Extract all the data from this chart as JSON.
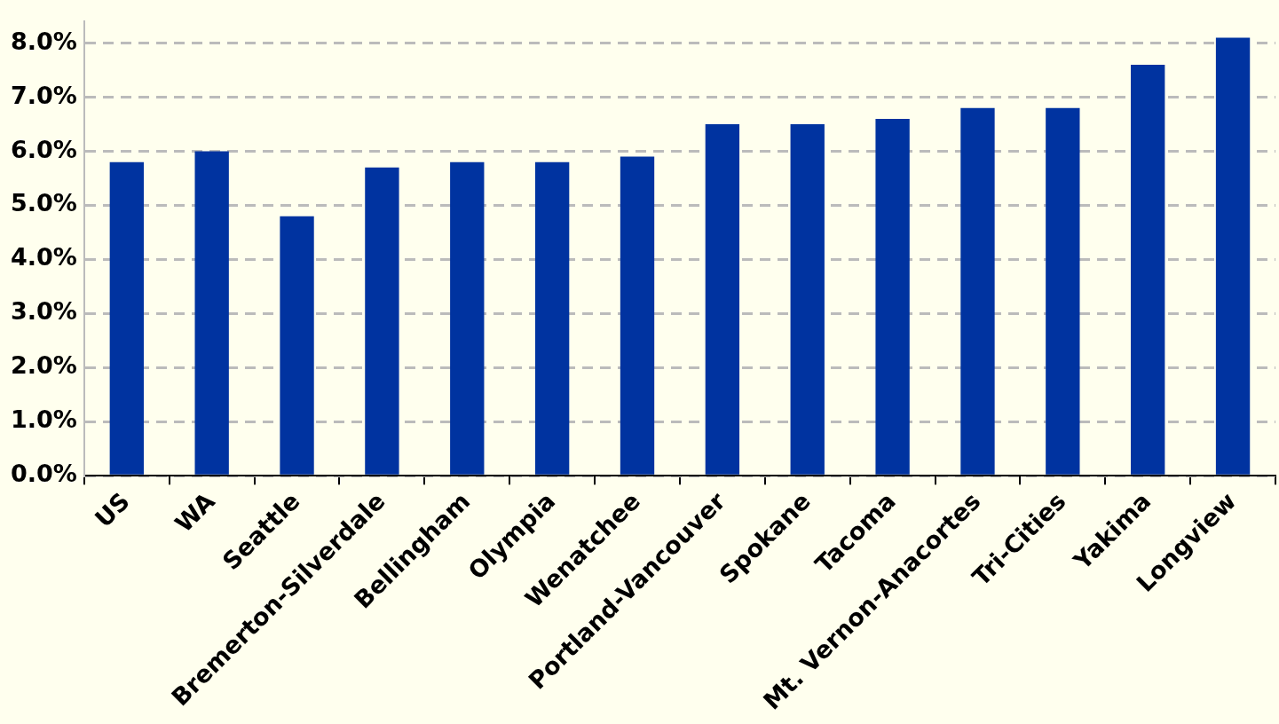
{
  "chart_data": {
    "type": "bar",
    "categories": [
      "US",
      "WA",
      "Seattle",
      "Bremerton-Silverdale",
      "Bellingham",
      "Olympia",
      "Wenatchee",
      "Portland-Vancouver",
      "Spokane",
      "Tacoma",
      "Mt. Vernon-Anacortes",
      "Tri-Cities",
      "Yakima",
      "Longview"
    ],
    "values": [
      5.8,
      6.0,
      4.8,
      5.7,
      5.8,
      5.8,
      5.9,
      6.5,
      6.5,
      6.6,
      6.8,
      6.8,
      7.6,
      8.1
    ],
    "color": "#0033a0",
    "ylim": [
      0,
      8.4
    ],
    "yticks": [
      {
        "value": 0,
        "label": "0.0%"
      },
      {
        "value": 1,
        "label": "1.0%"
      },
      {
        "value": 2,
        "label": "2.0%"
      },
      {
        "value": 3,
        "label": "3.0%"
      },
      {
        "value": 4,
        "label": "4.0%"
      },
      {
        "value": 5,
        "label": "5.0%"
      },
      {
        "value": 6,
        "label": "6.0%"
      },
      {
        "value": 7,
        "label": "7.0%"
      },
      {
        "value": 8,
        "label": "8.0%"
      }
    ],
    "grid": "y"
  }
}
